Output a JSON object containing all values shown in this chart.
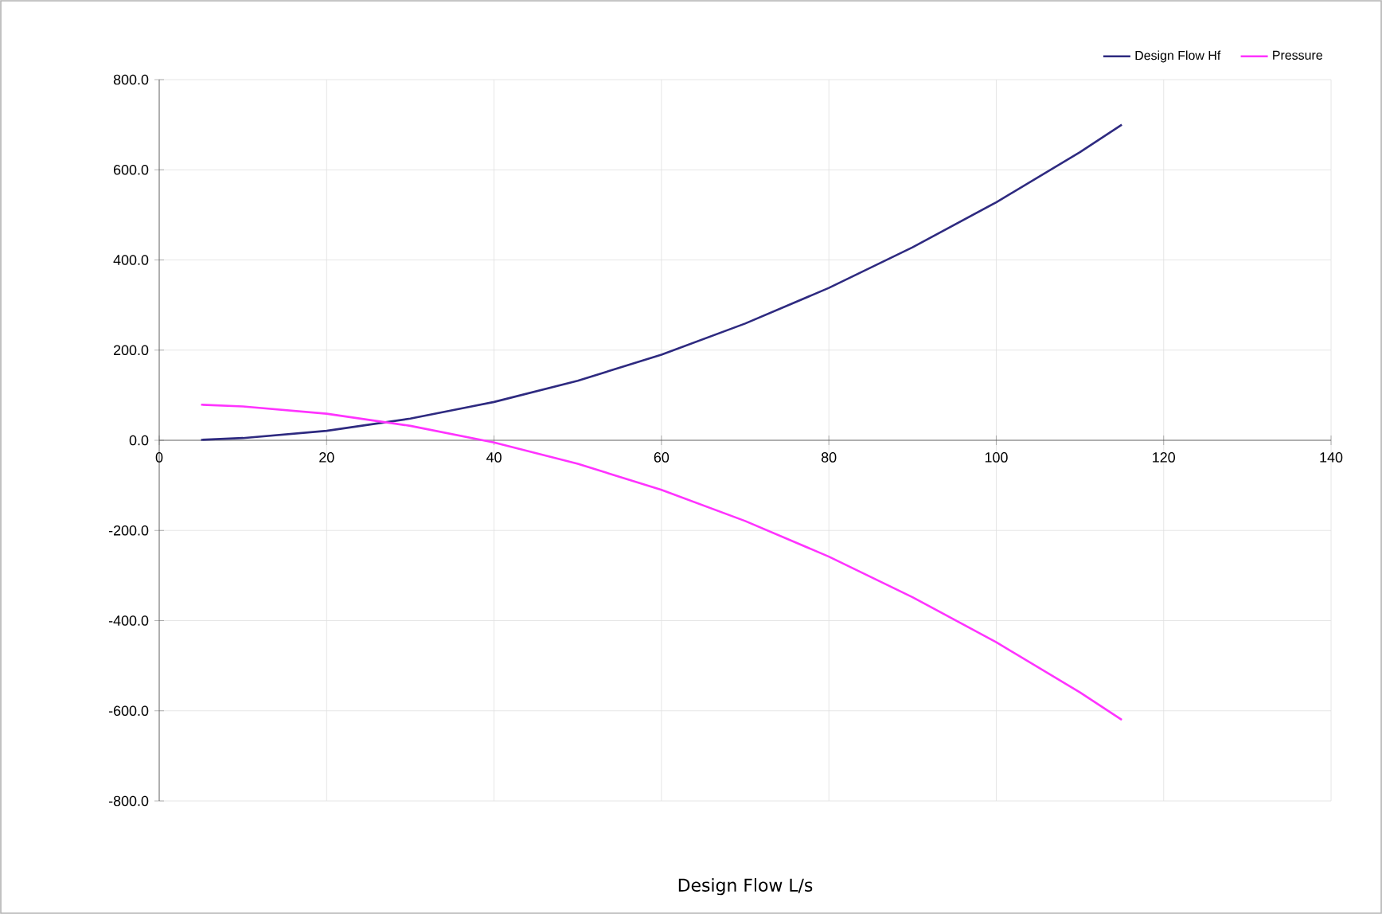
{
  "chart_data": {
    "type": "line",
    "xlabel": "Design Flow L/s",
    "x": [
      5,
      10,
      20,
      30,
      40,
      50,
      60,
      70,
      80,
      90,
      100,
      110,
      115
    ],
    "series": [
      {
        "name": "Design Flow Hf",
        "color": "#2e2a80",
        "values": [
          1,
          5,
          21,
          48,
          85,
          132,
          190,
          259,
          338,
          428,
          528,
          639,
          700
        ]
      },
      {
        "name": "Pressure",
        "color": "#ff33ff",
        "values": [
          79,
          75,
          59,
          32,
          -5,
          -52,
          -110,
          -179,
          -258,
          -348,
          -448,
          -559,
          -620
        ]
      }
    ],
    "xlim": [
      0,
      140
    ],
    "xticks": [
      0,
      20,
      40,
      60,
      80,
      100,
      120,
      140
    ],
    "ylim": [
      -800,
      800
    ],
    "yticks": [
      {
        "value": -800,
        "label": "-800.0"
      },
      {
        "value": -600,
        "label": "-600.0"
      },
      {
        "value": -400,
        "label": "-400.0"
      },
      {
        "value": -200,
        "label": "-200.0"
      },
      {
        "value": 0,
        "label": "0.0"
      },
      {
        "value": 200,
        "label": "200.0"
      },
      {
        "value": 400,
        "label": "400.0"
      },
      {
        "value": 600,
        "label": "600.0"
      },
      {
        "value": 800,
        "label": "800.0"
      }
    ],
    "grid": true,
    "legend": "top right",
    "marker": "none",
    "line_style": "solid"
  }
}
